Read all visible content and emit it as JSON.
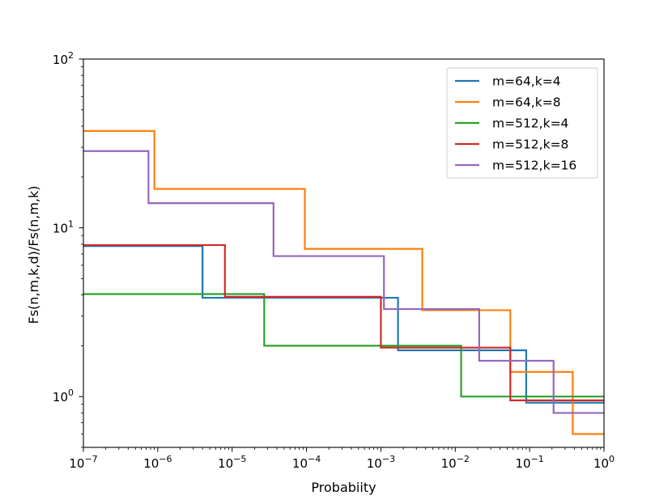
{
  "chart_data": {
    "type": "line",
    "step_style": "step-post",
    "title": "",
    "xlabel": "Probabiity",
    "ylabel": "Fs(n,m,k,d)/Fs(n,m,k)",
    "xscale": "log",
    "yscale": "log",
    "xlim": [
      1e-07,
      1
    ],
    "ylim": [
      0.5,
      100
    ],
    "grid": false,
    "legend_position": "upper right",
    "x_ticks": [
      {
        "base": "10",
        "exp": "−7",
        "value": 1e-07
      },
      {
        "base": "10",
        "exp": "−6",
        "value": 1e-06
      },
      {
        "base": "10",
        "exp": "−5",
        "value": 1e-05
      },
      {
        "base": "10",
        "exp": "−4",
        "value": 0.0001
      },
      {
        "base": "10",
        "exp": "−3",
        "value": 0.001
      },
      {
        "base": "10",
        "exp": "−2",
        "value": 0.01
      },
      {
        "base": "10",
        "exp": "−1",
        "value": 0.1
      },
      {
        "base": "10",
        "exp": "0",
        "value": 1
      }
    ],
    "y_ticks": [
      {
        "base": "10",
        "exp": "0",
        "value": 1
      },
      {
        "base": "10",
        "exp": "1",
        "value": 10
      },
      {
        "base": "10",
        "exp": "2",
        "value": 100
      }
    ],
    "series": [
      {
        "name": "m=64,k=4",
        "color": "#1f77b4",
        "x": [
          1e-07,
          4e-06,
          3.5e-05,
          0.0017,
          0.09,
          1
        ],
        "y": [
          7.8,
          3.85,
          3.85,
          1.88,
          0.92,
          0.92
        ]
      },
      {
        "name": "m=64,k=8",
        "color": "#ff7f0e",
        "x": [
          1e-07,
          9e-07,
          9.5e-05,
          0.0036,
          0.055,
          0.38,
          1
        ],
        "y": [
          37.5,
          17.0,
          7.5,
          3.25,
          1.4,
          0.6,
          0.6
        ]
      },
      {
        "name": "m=512,k=4",
        "color": "#2ca02c",
        "x": [
          1e-07,
          2.7e-05,
          0.012,
          1
        ],
        "y": [
          4.05,
          2.0,
          1.0,
          1.0
        ]
      },
      {
        "name": "m=512,k=8",
        "color": "#d62728",
        "x": [
          1e-07,
          8e-06,
          0.001,
          0.055,
          1
        ],
        "y": [
          7.9,
          3.9,
          1.95,
          0.95,
          0.95
        ]
      },
      {
        "name": "m=512,k=16",
        "color": "#9467bd",
        "x": [
          1e-07,
          7.5e-07,
          3.6e-05,
          0.0011,
          0.021,
          0.21,
          1
        ],
        "y": [
          28.5,
          14.0,
          6.8,
          3.3,
          1.63,
          0.8,
          0.8
        ]
      }
    ]
  }
}
